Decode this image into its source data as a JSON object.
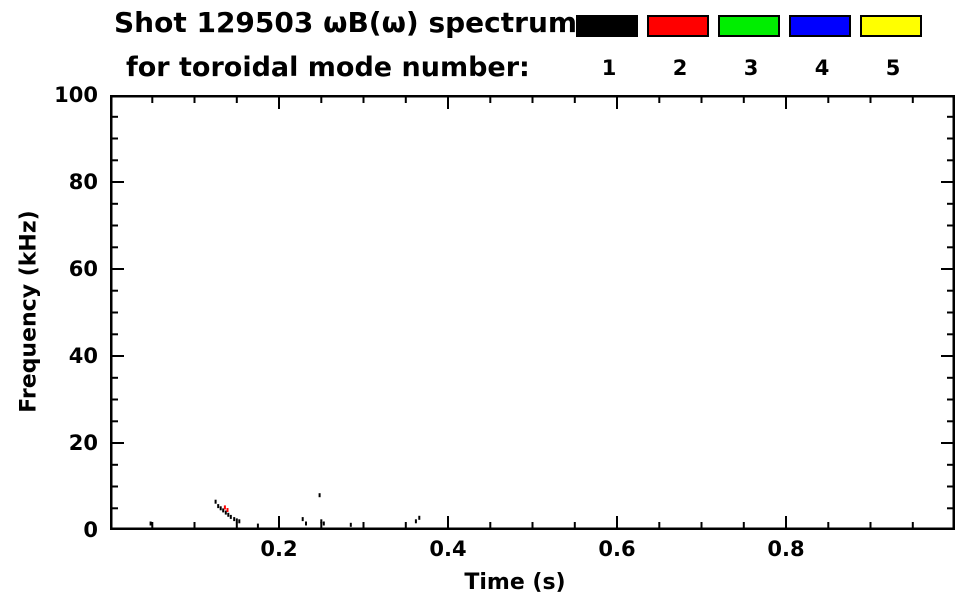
{
  "title": {
    "line1": "Shot 129503 ωB(ω) spectrum",
    "line2": "for toroidal mode number:"
  },
  "legend": {
    "entries": [
      {
        "label": "1",
        "color": "#000000"
      },
      {
        "label": "2",
        "color": "#ff0000"
      },
      {
        "label": "3",
        "color": "#00ee00"
      },
      {
        "label": "4",
        "color": "#0000ff"
      },
      {
        "label": "5",
        "color": "#ffff00"
      }
    ]
  },
  "chart_data": {
    "type": "scatter",
    "title": "Shot 129503 ωB(ω) spectrum for toroidal mode number: 1 2 3 4 5",
    "xlabel": "Time (s)",
    "ylabel": "Frequency (kHz)",
    "xlim": [
      0.0,
      1.0
    ],
    "ylim": [
      0,
      100
    ],
    "grid": false,
    "legend_position": "top-right-above-plot",
    "x_major_ticks": [
      0.2,
      0.4,
      0.6,
      0.8
    ],
    "x_minor_step": 0.05,
    "y_major_ticks": [
      20,
      40,
      60,
      80
    ],
    "y_minor_step": 5,
    "x_axis_labels": [
      {
        "value": 0.2,
        "label": "0.2"
      },
      {
        "value": 0.4,
        "label": "0.4"
      },
      {
        "value": 0.6,
        "label": "0.6"
      },
      {
        "value": 0.8,
        "label": "0.8"
      }
    ],
    "y_axis_labels": [
      {
        "value": 0,
        "label": "0"
      },
      {
        "value": 20,
        "label": "20"
      },
      {
        "value": 40,
        "label": "40"
      },
      {
        "value": 60,
        "label": "60"
      },
      {
        "value": 80,
        "label": "80"
      },
      {
        "value": 100,
        "label": "100"
      }
    ],
    "series": [
      {
        "name": "1",
        "color": "#000000",
        "points": [
          [
            0.048,
            1.5
          ],
          [
            0.125,
            6.5
          ],
          [
            0.128,
            5.5
          ],
          [
            0.131,
            5.0
          ],
          [
            0.134,
            4.5
          ],
          [
            0.137,
            4.0
          ],
          [
            0.14,
            3.5
          ],
          [
            0.143,
            3.0
          ],
          [
            0.147,
            2.5
          ],
          [
            0.15,
            2.2
          ],
          [
            0.153,
            2.0
          ],
          [
            0.175,
            1.0
          ],
          [
            0.228,
            2.5
          ],
          [
            0.232,
            1.5
          ],
          [
            0.248,
            8.0
          ],
          [
            0.25,
            2.0
          ],
          [
            0.253,
            1.5
          ],
          [
            0.285,
            1.2
          ],
          [
            0.362,
            2.0
          ],
          [
            0.366,
            2.8
          ]
        ]
      },
      {
        "name": "2",
        "color": "#ff0000",
        "points": [
          [
            0.136,
            5.2
          ],
          [
            0.139,
            4.6
          ]
        ]
      },
      {
        "name": "3",
        "color": "#00ee00",
        "points": []
      },
      {
        "name": "4",
        "color": "#0000ff",
        "points": []
      },
      {
        "name": "5",
        "color": "#ffff00",
        "points": []
      }
    ]
  }
}
